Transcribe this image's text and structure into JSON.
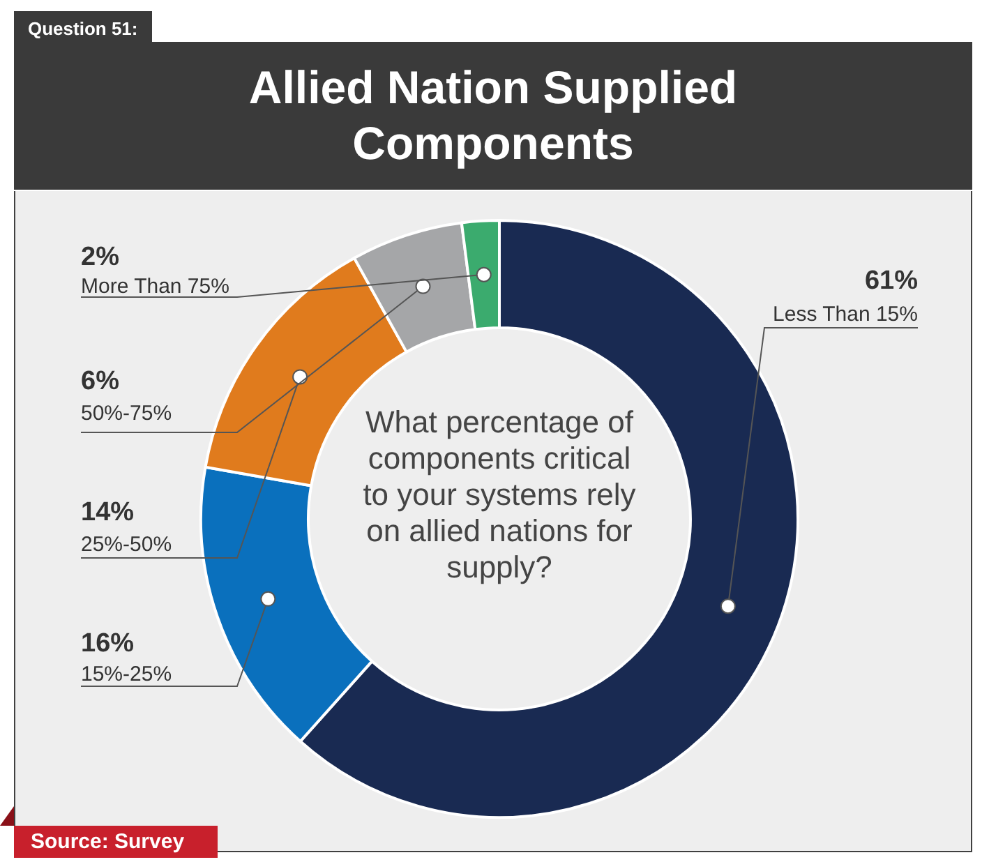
{
  "chart_data": {
    "type": "donut",
    "title": "Allied Nation Supplied Components",
    "categories": [
      "Less Than 15%",
      "15%-25%",
      "25%-50%",
      "50%-75%",
      "More Than 75%"
    ],
    "values": [
      61,
      16,
      14,
      6,
      2
    ],
    "value_labels": [
      "61%",
      "16%",
      "14%",
      "6%",
      "2%"
    ],
    "colors": [
      "#192a52",
      "#0a70bd",
      "#e07b1d",
      "#a5a6a8",
      "#3bab6e"
    ],
    "annotations": [
      "Question 51:",
      "What percentage of components critical to your systems rely on allied nations for supply?",
      "Source: Survey"
    ],
    "legend": false
  }
}
